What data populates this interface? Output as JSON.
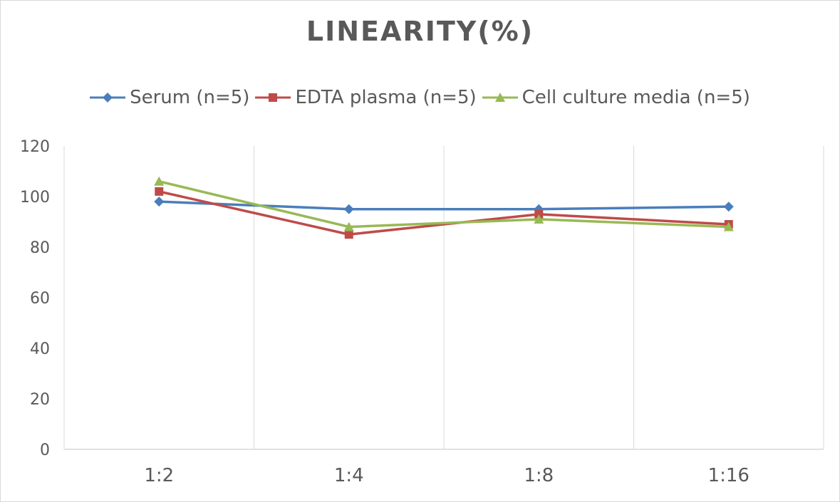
{
  "chart_data": {
    "type": "line",
    "title": "LINEARITY(%)",
    "xlabel": "",
    "ylabel": "",
    "categories": [
      "1:2",
      "1:4",
      "1:8",
      "1:16"
    ],
    "ylim": [
      0,
      120
    ],
    "yticks": [
      0,
      20,
      40,
      60,
      80,
      100,
      120
    ],
    "grid": "vertical",
    "legend": "top",
    "series": [
      {
        "name": "Serum (n=5)",
        "values": [
          98,
          95,
          95,
          96
        ],
        "color": "#4a7ebb",
        "marker": "diamond"
      },
      {
        "name": "EDTA plasma (n=5)",
        "values": [
          102,
          85,
          93,
          89
        ],
        "color": "#be4b48",
        "marker": "square"
      },
      {
        "name": "Cell culture media (n=5)",
        "values": [
          106,
          88,
          91,
          88
        ],
        "color": "#98b954",
        "marker": "triangle"
      }
    ]
  }
}
